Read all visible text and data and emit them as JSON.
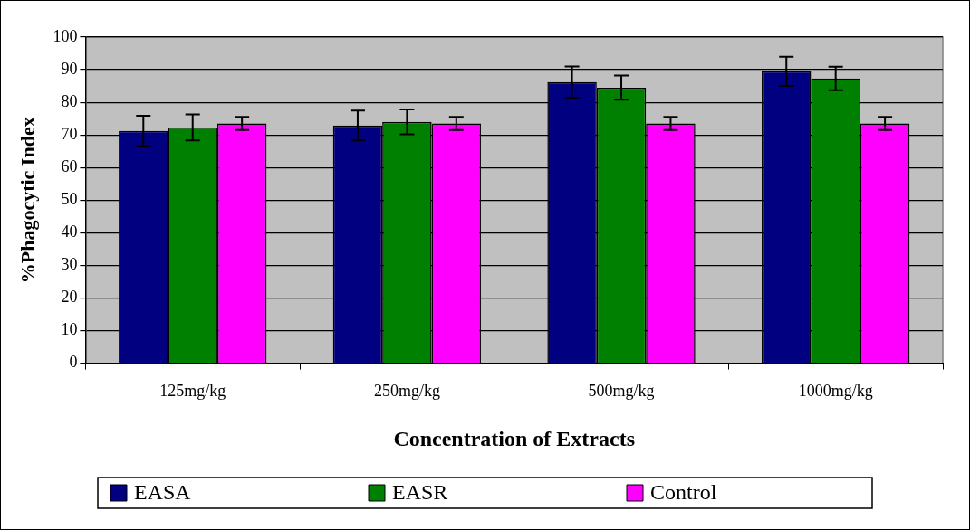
{
  "chart_data": {
    "type": "bar",
    "xlabel": "Concentration of Extracts",
    "ylabel": "%Phagocytic Index",
    "categories": [
      "125mg/kg",
      "250mg/kg",
      "500mg/kg",
      "1000mg/kg"
    ],
    "series": [
      {
        "name": "EASA",
        "color": "#000080",
        "values": [
          71.2,
          72.9,
          86.2,
          89.5
        ],
        "errors": [
          4.7,
          4.6,
          4.8,
          4.5
        ]
      },
      {
        "name": "EASR",
        "color": "#008000",
        "values": [
          72.3,
          74.0,
          84.5,
          87.3
        ],
        "errors": [
          4.0,
          3.8,
          3.7,
          3.6
        ]
      },
      {
        "name": "Control",
        "color": "#ff00ff",
        "values": [
          73.5,
          73.5,
          73.5,
          73.5
        ],
        "errors": [
          2.0,
          2.0,
          2.0,
          2.0
        ]
      }
    ],
    "ylim": [
      0,
      100
    ],
    "yticks": [
      0,
      10,
      20,
      30,
      40,
      50,
      60,
      70,
      80,
      90,
      100
    ],
    "grid": "y",
    "legend": "bottom"
  }
}
